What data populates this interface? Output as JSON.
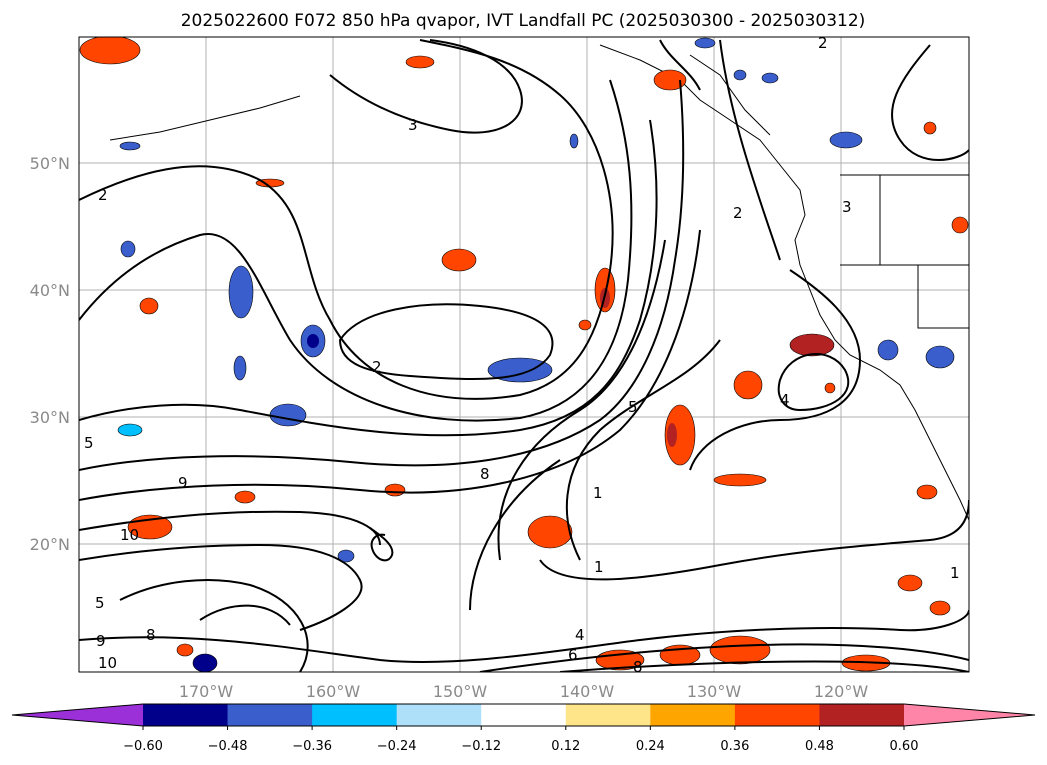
{
  "title": "2025022600 F072 850 hPa qvapor, IVT Landfall PC (2025030300 - 2025030312)",
  "map": {
    "lat_labels": [
      "50°N",
      "40°N",
      "30°N",
      "20°N"
    ],
    "lon_labels": [
      "170°W",
      "160°W",
      "150°W",
      "140°W",
      "130°W",
      "120°W"
    ],
    "grid": true
  },
  "colorbar": {
    "ticks": [
      "−0.60",
      "−0.48",
      "−0.36",
      "−0.24",
      "−0.12",
      "0.12",
      "0.24",
      "0.36",
      "0.48",
      "0.60"
    ],
    "colors": [
      "#9b30d8",
      "#00008b",
      "#3a5fcd",
      "#00bfff",
      "#afe0fa",
      "#ffffff",
      "#ffe58a",
      "#ffa500",
      "#ff4500",
      "#b22222",
      "#ff85a8"
    ]
  },
  "contour_labels": [
    {
      "text": "2",
      "name": "contour-label-2-nw"
    },
    {
      "text": "3",
      "name": "contour-label-3-north"
    },
    {
      "text": "2",
      "name": "contour-label-2-center"
    },
    {
      "text": "5",
      "name": "contour-label-5-west"
    },
    {
      "text": "9",
      "name": "contour-label-9-west"
    },
    {
      "text": "10",
      "name": "contour-label-10-west"
    },
    {
      "text": "8",
      "name": "contour-label-8-center"
    },
    {
      "text": "5",
      "name": "contour-label-5-jet"
    },
    {
      "text": "1",
      "name": "contour-label-1-center"
    },
    {
      "text": "1",
      "name": "contour-label-1-south"
    },
    {
      "text": "2",
      "name": "contour-label-2-ne"
    },
    {
      "text": "2",
      "name": "contour-label-2-coast"
    },
    {
      "text": "4",
      "name": "contour-label-4-se"
    },
    {
      "text": "3",
      "name": "contour-label-3-coast"
    },
    {
      "text": "4",
      "name": "contour-label-4-bottom"
    },
    {
      "text": "6",
      "name": "contour-label-6-bottom"
    },
    {
      "text": "8",
      "name": "contour-label-8-bottom"
    },
    {
      "text": "9",
      "name": "contour-label-9-sw"
    },
    {
      "text": "8",
      "name": "contour-label-8-sw"
    },
    {
      "text": "10",
      "name": "contour-label-10-sw"
    },
    {
      "text": "5",
      "name": "contour-label-5-sw"
    },
    {
      "text": "1",
      "name": "contour-label-1-east"
    }
  ]
}
